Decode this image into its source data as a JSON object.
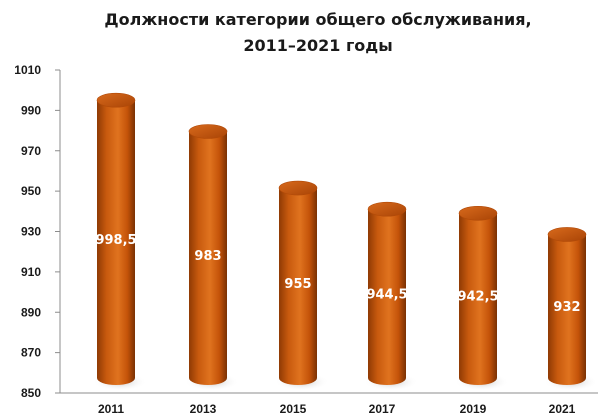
{
  "chart_data": {
    "type": "bar",
    "title_lines": [
      "Должности категории общего обслуживания,",
      "2011–2021 годы"
    ],
    "categories": [
      "2011",
      "2013",
      "2015",
      "2017",
      "2019",
      "2021"
    ],
    "values": [
      998.5,
      983,
      955,
      944.5,
      942.5,
      932
    ],
    "data_labels": [
      "998,5",
      "983",
      "955",
      "944,5",
      "942,5",
      "932"
    ],
    "ylim": [
      850,
      1010
    ],
    "yticks": [
      850,
      870,
      890,
      910,
      930,
      950,
      970,
      990,
      1010
    ],
    "grid": false,
    "legend": "none",
    "bar_style": "3d-cylinder",
    "bar_color": "#c95a0c"
  }
}
